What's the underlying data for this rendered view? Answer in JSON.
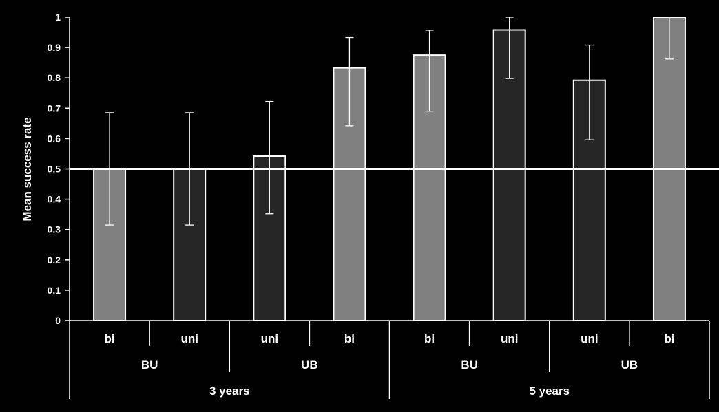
{
  "chart_data": {
    "type": "bar",
    "ylabel": "Mean success rate",
    "ylim": [
      0,
      1
    ],
    "yticks": [
      "0",
      "0.1",
      "0.2",
      "0.3",
      "0.4",
      "0.5",
      "0.6",
      "0.7",
      "0.8",
      "0.9",
      "1"
    ],
    "reference_line": 0.5,
    "bars": [
      {
        "label": "bi",
        "value": 0.5,
        "err_low": 0.315,
        "err_high": 0.685,
        "color": "#808080"
      },
      {
        "label": "uni",
        "value": 0.5,
        "err_low": 0.315,
        "err_high": 0.685,
        "color": "#262626"
      },
      {
        "label": "uni",
        "value": 0.542,
        "err_low": 0.352,
        "err_high": 0.722,
        "color": "#262626"
      },
      {
        "label": "bi",
        "value": 0.833,
        "err_low": 0.642,
        "err_high": 0.933,
        "color": "#808080"
      },
      {
        "label": "bi",
        "value": 0.875,
        "err_low": 0.69,
        "err_high": 0.957,
        "color": "#808080"
      },
      {
        "label": "uni",
        "value": 0.958,
        "err_low": 0.798,
        "err_high": 1.0,
        "color": "#262626"
      },
      {
        "label": "uni",
        "value": 0.792,
        "err_low": 0.596,
        "err_high": 0.908,
        "color": "#262626"
      },
      {
        "label": "bi",
        "value": 1.0,
        "err_low": 0.862,
        "err_high": 1.0,
        "color": "#808080"
      }
    ],
    "groups_level2": [
      {
        "label": "BU",
        "start": 0,
        "end": 1
      },
      {
        "label": "UB",
        "start": 2,
        "end": 3
      },
      {
        "label": "BU",
        "start": 4,
        "end": 5
      },
      {
        "label": "UB",
        "start": 6,
        "end": 7
      }
    ],
    "groups_level3": [
      {
        "label": "3 years",
        "start": 0,
        "end": 3
      },
      {
        "label": "5 years",
        "start": 4,
        "end": 7
      }
    ],
    "grid": false,
    "legend": "none"
  }
}
